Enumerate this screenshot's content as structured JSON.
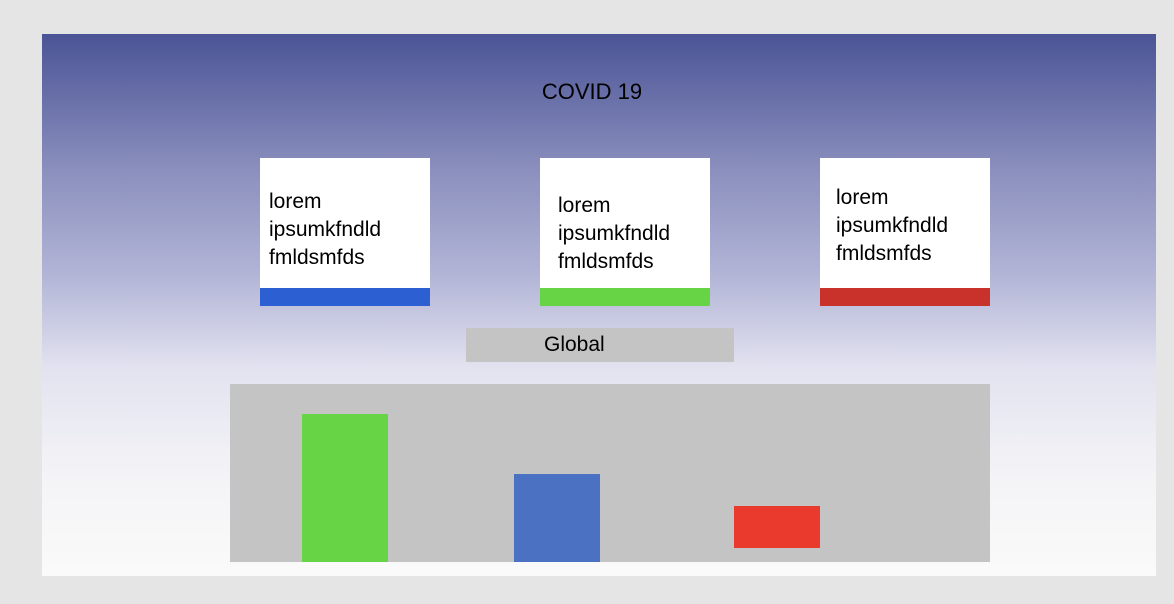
{
  "header": {
    "title": "COVID 19"
  },
  "cards": [
    {
      "text": "lorem\nipsumkfndld\nfmldsmfds",
      "accent": "#2b5fd2"
    },
    {
      "text": "lorem\nipsumkfndld\nfmldsmfds",
      "accent": "#66d444"
    },
    {
      "text": "lorem\nipsumkfndld\nfmldsmfds",
      "accent": "#c9322a"
    }
  ],
  "section": {
    "label": "Global"
  },
  "chart_data": {
    "type": "bar",
    "categories": [
      "",
      "",
      ""
    ],
    "values": [
      148,
      88,
      42
    ],
    "colors": [
      "#66d444",
      "#4b72c2",
      "#ea3a2e"
    ],
    "ylim": [
      0,
      178
    ],
    "grid": false,
    "title": "",
    "xlabel": "",
    "ylabel": ""
  }
}
